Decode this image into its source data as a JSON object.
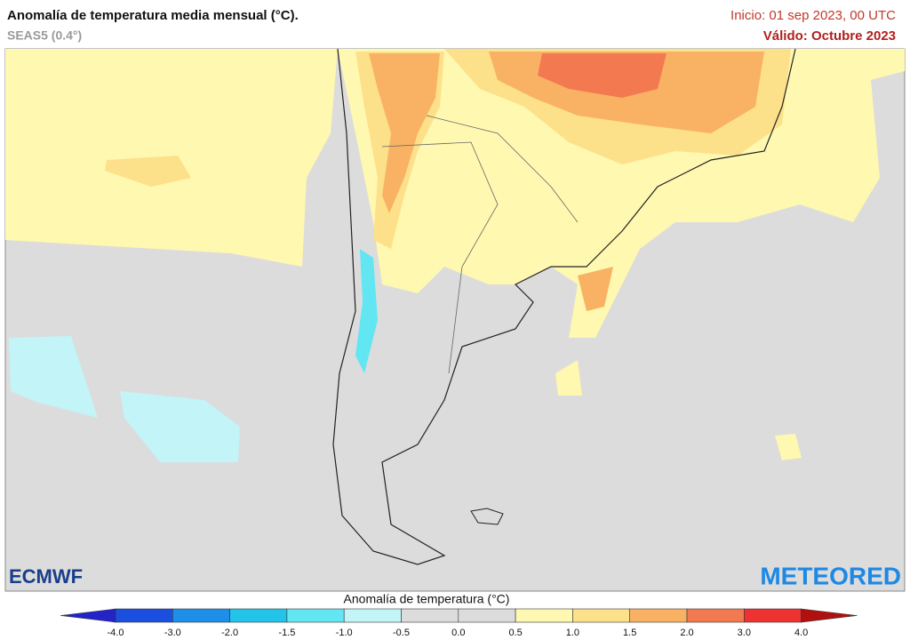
{
  "header": {
    "title": "Anomalía de temperatura media mensual (°C).",
    "subtitle": "SEAS5 (0.4°)",
    "init": "Inicio: 01 sep 2023, 00 UTC",
    "valid": "Válido: Octubre 2023"
  },
  "logos": {
    "left": "ECMWF",
    "right": "METEORED"
  },
  "legend": {
    "title": "Anomalía de temperatura (°C)",
    "ticks": [
      "-4.0",
      "-3.0",
      "-2.0",
      "-1.5",
      "-1.0",
      "-0.5",
      "0.0",
      "0.5",
      "1.0",
      "1.5",
      "2.0",
      "3.0",
      "4.0"
    ],
    "colors": [
      "#2323c8",
      "#1a4fe0",
      "#1e8fe8",
      "#22c4ea",
      "#62e6f2",
      "#c2f4f8",
      "#dcdcdc",
      "#dcdcdc",
      "#fff8b0",
      "#fde08a",
      "#f9b264",
      "#f37a50",
      "#ee3232",
      "#b01010"
    ]
  }
}
